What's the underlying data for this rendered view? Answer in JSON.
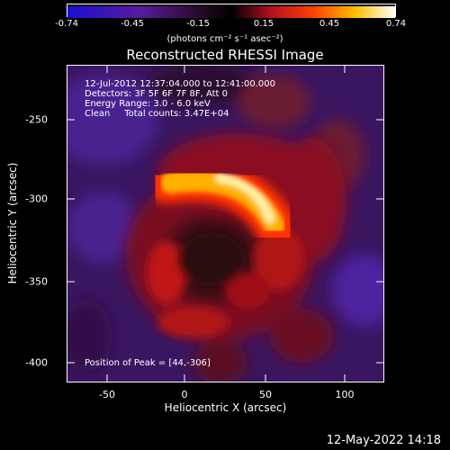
{
  "colorbar": {
    "ticks": [
      "-0.74",
      "-0.45",
      "-0.15",
      "0.15",
      "0.45",
      "0.74"
    ],
    "units": "(photons cm⁻² s⁻¹ asec⁻²)",
    "colors": [
      "#1a10d0",
      "#5a1aa0",
      "#2a0a2a",
      "#000000",
      "#b01020",
      "#ff4000",
      "#ffc000",
      "#ffffff"
    ]
  },
  "title": "Reconstructed RHESSI Image",
  "info": {
    "line1": "12-Jul-2012 12:37:04.000 to 12:41:00.000",
    "line2": "Detectors: 3F 5F 6F 7F 8F, Att 0",
    "line3": "Energy Range: 3.0 - 6.0 keV",
    "line4": "Clean     Total counts: 3.47E+04",
    "peak": "Position of Peak = [44,-306]"
  },
  "axes": {
    "xlabel": "Heliocentric X (arcsec)",
    "ylabel": "Heliocentric Y (arcsec)",
    "xticks": [
      "-50",
      "0",
      "50",
      "100"
    ],
    "yticks": [
      "-250",
      "-300",
      "-350",
      "-400"
    ],
    "xlim": [
      -72,
      122
    ],
    "ylim": [
      -415,
      -221
    ]
  },
  "footer": {
    "date": "12-May-2022 14:18"
  }
}
